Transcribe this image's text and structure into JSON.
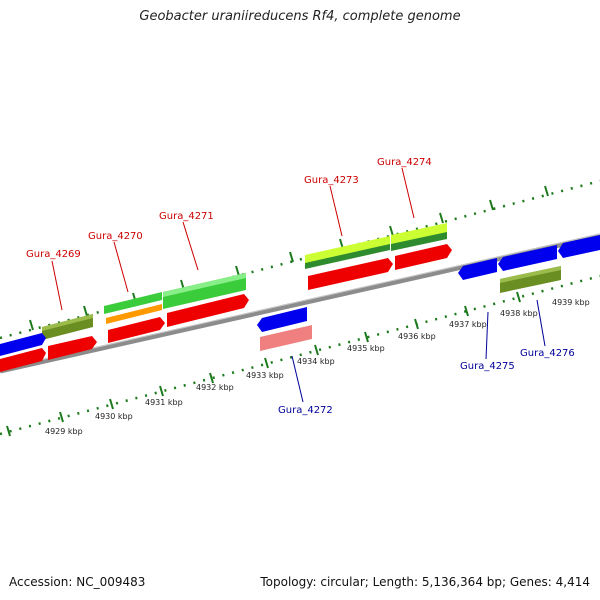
{
  "title": "Geobacter uraniireducens Rf4, complete genome",
  "footer": {
    "accession": "Accession: NC_009483",
    "summary": "Topology: circular; Length: 5,136,364 bp; Genes: 4,414"
  },
  "colors": {
    "forward_label": "#cc0000",
    "reverse_label": "#000099",
    "backbone": "#8c8c8c",
    "tick": "#1c7a1c",
    "cds_red": "#ee0000",
    "cds_blue": "#0000ee",
    "cds_green": "#3bcc3b",
    "cds_olive": "#6b8e23",
    "cds_orange": "#ff9900",
    "cds_lime": "#ccff33",
    "cds_pink": "#f08080"
  },
  "scale_labels": [
    "4929 kbp",
    "4930 kbp",
    "4931 kbp",
    "4932 kbp",
    "4933 kbp",
    "4934 kbp",
    "4935 kbp",
    "4936 kbp",
    "4937 kbp",
    "4938 kbp",
    "4939 kbp"
  ],
  "gene_labels": {
    "forward": [
      "Gura_4269",
      "Gura_4270",
      "Gura_4271",
      "Gura_4273",
      "Gura_4274"
    ],
    "reverse": [
      "Gura_4272",
      "Gura_4275",
      "Gura_4276"
    ]
  }
}
